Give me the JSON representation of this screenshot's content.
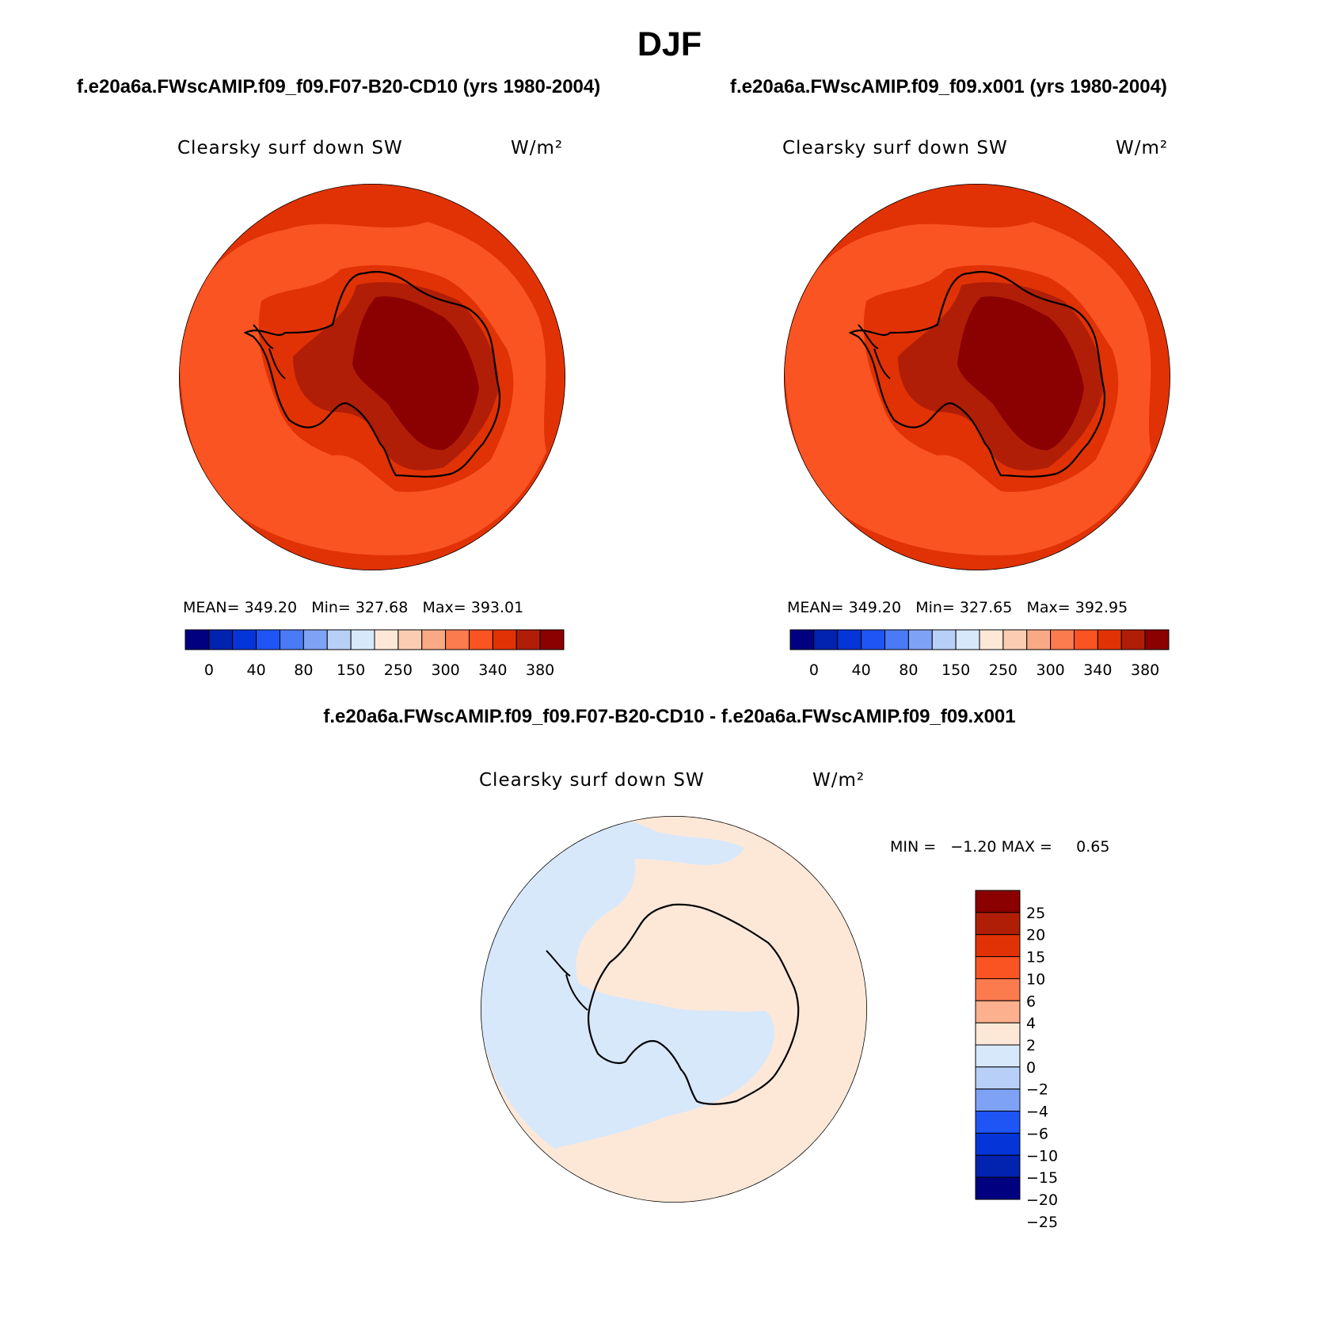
{
  "title": "DJF",
  "panels": [
    {
      "case": "f.e20a6a.FWscAMIP.f09_f09.F07-B20-CD10 (yrs 1980-2004)",
      "variable": "Clearsky surf down SW",
      "units": "W/m²",
      "mean_label": "MEAN=",
      "mean": "349.20",
      "min_label": "Min=",
      "min": "327.68",
      "max_label": "Max=",
      "max": "393.01"
    },
    {
      "case": "f.e20a6a.FWscAMIP.f09_f09.x001 (yrs 1980-2004)",
      "variable": "Clearsky surf down SW",
      "units": "W/m²",
      "mean_label": "MEAN=",
      "mean": "349.20",
      "min_label": "Min=",
      "min": "327.65",
      "max_label": "Max=",
      "max": "392.95"
    }
  ],
  "difference": {
    "title": "f.e20a6a.FWscAMIP.f09_f09.F07-B20-CD10 - f.e20a6a.FWscAMIP.f09_f09.x001",
    "variable": "Clearsky surf down SW",
    "units": "W/m²",
    "min_label": "MIN =",
    "min": "−1.20",
    "max_label": "MAX =",
    "max": "0.65"
  },
  "colors": {
    "abs_palette": [
      "#000080",
      "#0222b0",
      "#0535d8",
      "#1f55f5",
      "#4a7af5",
      "#7ea2f5",
      "#b8cff7",
      "#d8e8fb",
      "#fde8d8",
      "#fcccb2",
      "#f9a985",
      "#fb7a4e",
      "#fa5422",
      "#e13205",
      "#b01e08",
      "#8b0000"
    ],
    "diff_palette": [
      "#000080",
      "#0222b0",
      "#0535d8",
      "#1f55f5",
      "#7ea2f5",
      "#b8cff7",
      "#d8e8fb",
      "#fde8d8",
      "#fcb08d",
      "#fb7a4e",
      "#fa5422",
      "#e13205",
      "#b01e08",
      "#8b0000"
    ]
  },
  "chart_data": [
    {
      "type": "heatmap",
      "projection": "south-polar stereographic",
      "title": "Clearsky surf down SW",
      "units": "W/m²",
      "colorbar_ticks": [
        "0",
        "40",
        "80",
        "150",
        "250",
        "300",
        "340",
        "380"
      ],
      "colorbar_orientation": "horizontal",
      "mean": 349.2,
      "min": 327.68,
      "max": 393.01
    },
    {
      "type": "heatmap",
      "projection": "south-polar stereographic",
      "title": "Clearsky surf down SW",
      "units": "W/m²",
      "colorbar_ticks": [
        "0",
        "40",
        "80",
        "150",
        "250",
        "300",
        "340",
        "380"
      ],
      "colorbar_orientation": "horizontal",
      "mean": 349.2,
      "min": 327.65,
      "max": 392.95
    },
    {
      "type": "heatmap",
      "projection": "south-polar stereographic",
      "title": "Clearsky surf down SW",
      "units": "W/m²",
      "colorbar_ticks": [
        "25",
        "20",
        "15",
        "10",
        "6",
        "4",
        "2",
        "0",
        "−2",
        "−4",
        "−6",
        "−10",
        "−15",
        "−20",
        "−25"
      ],
      "colorbar_orientation": "vertical",
      "min": -1.2,
      "max": 0.65
    }
  ]
}
